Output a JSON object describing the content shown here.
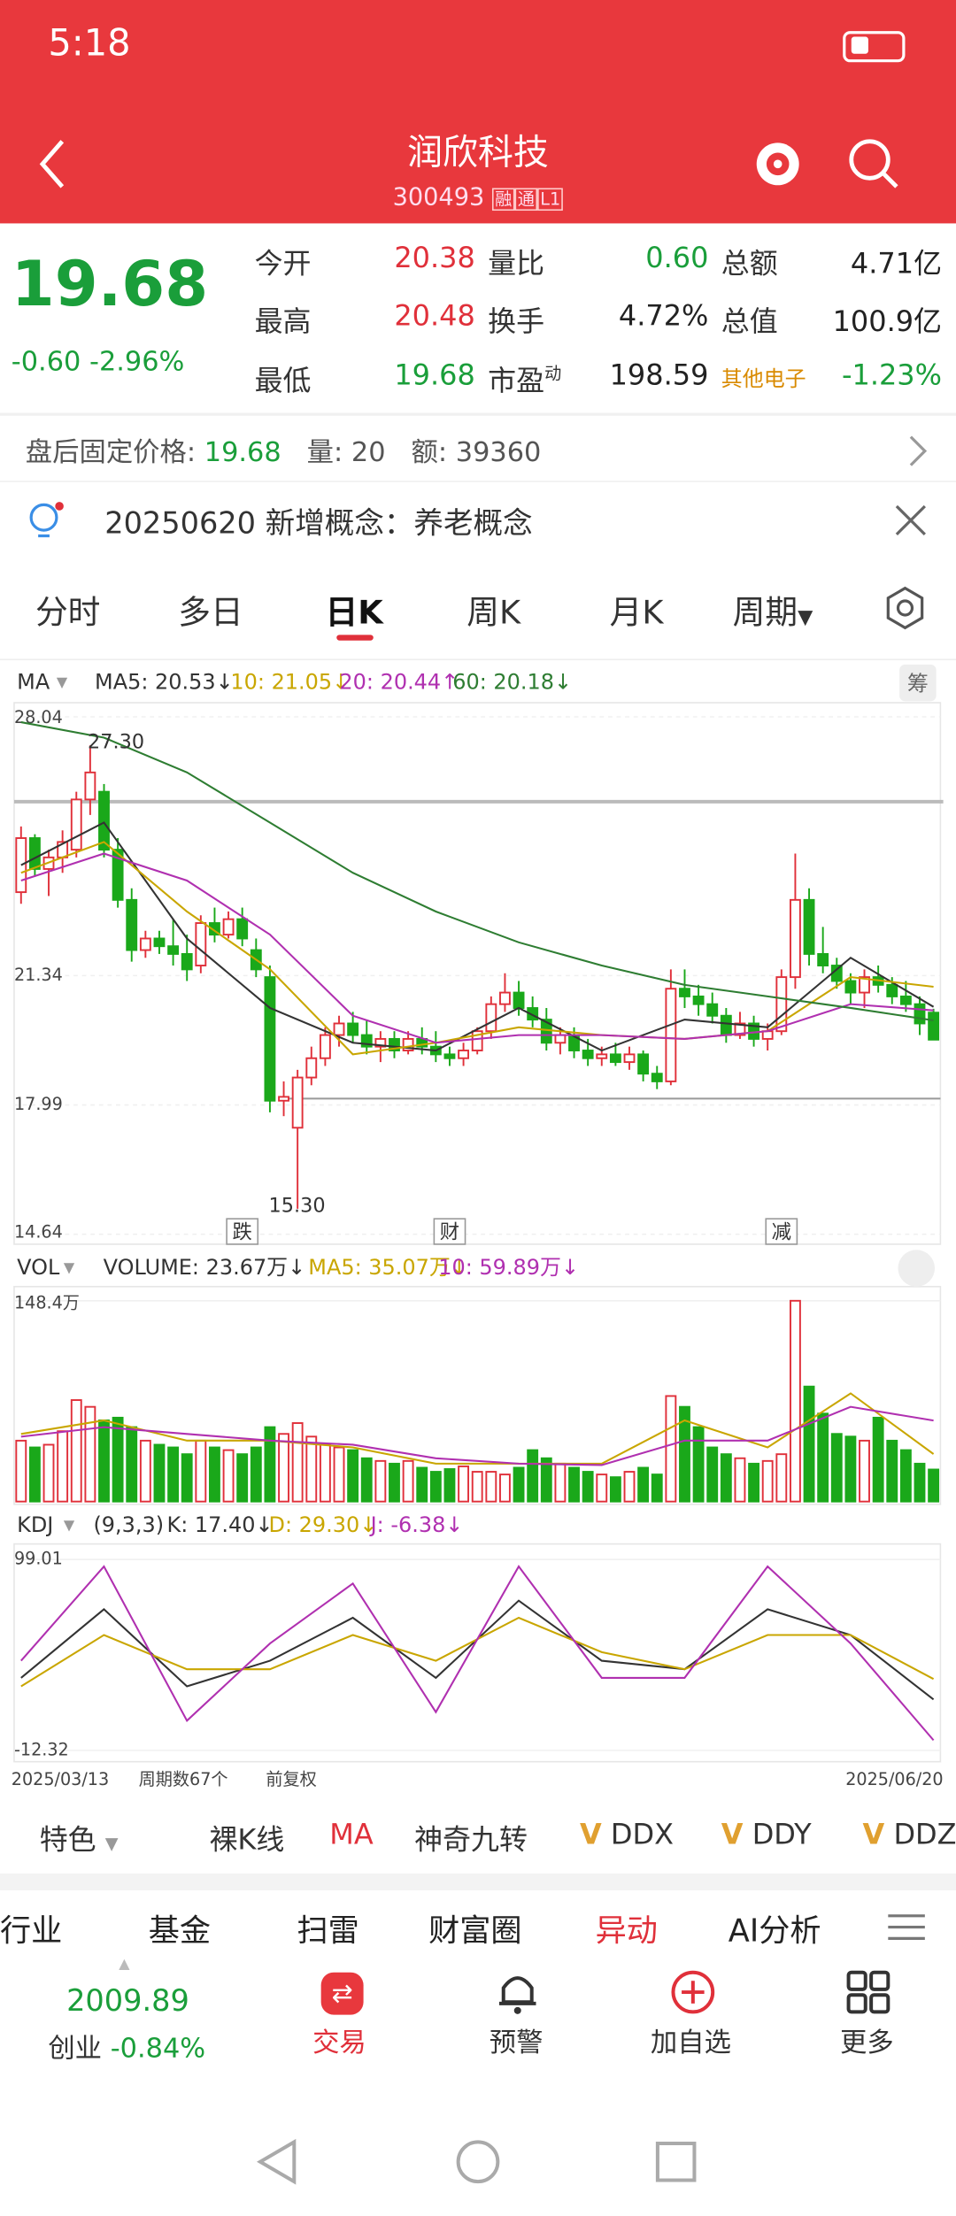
{
  "status_bar": {
    "time": "5:18"
  },
  "header": {
    "title": "润欣科技",
    "code": "300493",
    "badges": [
      "融",
      "通",
      "L1"
    ]
  },
  "quote": {
    "price": "19.68",
    "change": "-0.60",
    "change_pct": "-2.96%",
    "fields": [
      {
        "label": "今开",
        "value": "20.38"
      },
      {
        "label": "量比",
        "value": "0.60"
      },
      {
        "label": "总额",
        "value": "4.71亿"
      },
      {
        "label": "最高",
        "value": "20.48"
      },
      {
        "label": "换手",
        "value": "4.72%"
      },
      {
        "label": "总值",
        "value": "100.9亿"
      },
      {
        "label": "最低",
        "value": "19.68"
      },
      {
        "label": "市盈",
        "sup": "动",
        "value": "198.59"
      },
      {
        "label": "其他电子",
        "value": "-1.23%"
      }
    ]
  },
  "after_hours": {
    "label": "盘后固定价格:",
    "price": "19.68",
    "vol_label": "量:",
    "vol": "20",
    "amt_label": "额:",
    "amt": "39360"
  },
  "notice": {
    "date": "20250620",
    "text": "新增概念：养老概念"
  },
  "tabs": [
    "分时",
    "多日",
    "日K",
    "周K",
    "月K",
    "周期"
  ],
  "kline": {
    "indicator": "MA",
    "chip": "筹",
    "ylim": [
      14.64,
      28.04
    ],
    "yticks": [
      28.04,
      21.34,
      17.99,
      14.64
    ],
    "high_label": "27.30",
    "low_label": "15.30",
    "candles": [
      [
        23.5,
        25.2,
        23.2,
        24.9
      ],
      [
        24.9,
        25.0,
        23.9,
        24.1
      ],
      [
        24.1,
        24.6,
        23.4,
        24.4
      ],
      [
        24.4,
        25.1,
        24.0,
        24.8
      ],
      [
        24.6,
        26.1,
        24.4,
        25.9
      ],
      [
        25.9,
        27.3,
        25.5,
        26.6
      ],
      [
        26.1,
        26.3,
        24.4,
        24.6
      ],
      [
        24.6,
        24.9,
        23.1,
        23.3
      ],
      [
        23.3,
        23.6,
        21.7,
        22.0
      ],
      [
        22.0,
        22.5,
        21.8,
        22.3
      ],
      [
        22.3,
        22.5,
        21.9,
        22.1
      ],
      [
        22.1,
        22.8,
        21.6,
        21.9
      ],
      [
        21.9,
        22.4,
        21.2,
        21.5
      ],
      [
        21.6,
        22.9,
        21.4,
        22.7
      ],
      [
        22.7,
        23.1,
        22.2,
        22.4
      ],
      [
        22.4,
        23.0,
        22.3,
        22.8
      ],
      [
        22.8,
        23.1,
        22.1,
        22.3
      ],
      [
        22.0,
        22.3,
        21.3,
        21.5
      ],
      [
        21.3,
        21.6,
        17.8,
        18.1
      ],
      [
        18.1,
        18.6,
        17.7,
        18.2
      ],
      [
        17.4,
        18.9,
        15.3,
        18.7
      ],
      [
        18.7,
        19.5,
        18.5,
        19.2
      ],
      [
        19.2,
        20.0,
        19.0,
        19.8
      ],
      [
        19.8,
        20.3,
        19.5,
        20.1
      ],
      [
        20.1,
        20.4,
        19.6,
        19.8
      ],
      [
        19.8,
        20.2,
        19.3,
        19.5
      ],
      [
        19.5,
        19.9,
        19.1,
        19.7
      ],
      [
        19.7,
        19.9,
        19.2,
        19.4
      ],
      [
        19.4,
        19.9,
        19.3,
        19.7
      ],
      [
        19.7,
        20.0,
        19.3,
        19.5
      ],
      [
        19.5,
        19.9,
        19.1,
        19.3
      ],
      [
        19.3,
        19.5,
        19.0,
        19.2
      ],
      [
        19.2,
        19.6,
        19.0,
        19.4
      ],
      [
        19.4,
        20.0,
        19.3,
        19.9
      ],
      [
        19.9,
        20.8,
        19.7,
        20.6
      ],
      [
        20.6,
        21.4,
        20.4,
        20.9
      ],
      [
        20.9,
        21.2,
        20.3,
        20.5
      ],
      [
        20.5,
        20.8,
        20.0,
        20.2
      ],
      [
        20.2,
        20.5,
        19.4,
        19.6
      ],
      [
        19.6,
        20.0,
        19.3,
        19.8
      ],
      [
        19.8,
        20.0,
        19.2,
        19.4
      ],
      [
        19.4,
        19.7,
        19.0,
        19.2
      ],
      [
        19.2,
        19.5,
        19.0,
        19.3
      ],
      [
        19.3,
        19.6,
        19.0,
        19.1
      ],
      [
        19.1,
        19.5,
        18.9,
        19.3
      ],
      [
        19.3,
        19.4,
        18.6,
        18.8
      ],
      [
        18.8,
        19.0,
        18.4,
        18.6
      ],
      [
        18.6,
        21.5,
        18.5,
        21.0
      ],
      [
        21.0,
        21.5,
        20.5,
        20.8
      ],
      [
        20.8,
        21.1,
        20.3,
        20.6
      ],
      [
        20.6,
        20.9,
        20.1,
        20.3
      ],
      [
        20.3,
        20.5,
        19.6,
        19.8
      ],
      [
        19.8,
        20.4,
        19.7,
        20.1
      ],
      [
        20.1,
        20.3,
        19.5,
        19.7
      ],
      [
        19.7,
        20.1,
        19.4,
        19.9
      ],
      [
        19.9,
        21.5,
        19.8,
        21.3
      ],
      [
        21.3,
        24.5,
        21.0,
        23.3
      ],
      [
        23.3,
        23.6,
        21.6,
        21.9
      ],
      [
        21.9,
        22.6,
        21.4,
        21.6
      ],
      [
        21.6,
        21.8,
        21.0,
        21.2
      ],
      [
        21.2,
        21.4,
        20.6,
        20.9
      ],
      [
        20.9,
        21.5,
        20.5,
        21.3
      ],
      [
        21.3,
        21.6,
        20.9,
        21.1
      ],
      [
        21.1,
        21.3,
        20.6,
        20.8
      ],
      [
        20.8,
        21.2,
        20.4,
        20.6
      ],
      [
        20.6,
        20.8,
        19.8,
        20.1
      ],
      [
        20.38,
        20.48,
        19.68,
        19.68
      ]
    ],
    "ma": [
      {
        "name": "MA5: 20.53↓",
        "color": "#333333",
        "x": [
          0,
          6,
          12,
          18,
          24,
          30,
          36,
          42,
          48,
          54,
          60,
          66
        ],
        "values": [
          24.2,
          25.3,
          22.3,
          20.5,
          19.6,
          19.4,
          20.5,
          19.4,
          20.2,
          20.0,
          21.8,
          20.53
        ]
      },
      {
        "name": "10: 21.05↓",
        "color": "#c9a600",
        "x": [
          0,
          6,
          12,
          18,
          24,
          30,
          36,
          42,
          48,
          54,
          60,
          66
        ],
        "values": [
          24.0,
          24.8,
          23.0,
          21.5,
          19.3,
          19.6,
          20.0,
          19.8,
          19.7,
          19.9,
          21.3,
          21.05
        ]
      },
      {
        "name": "20: 20.44↑",
        "color": "#b030b0",
        "x": [
          0,
          6,
          12,
          18,
          24,
          30,
          36,
          42,
          48,
          54,
          60,
          66
        ],
        "values": [
          23.8,
          24.5,
          23.8,
          22.4,
          20.3,
          19.6,
          19.8,
          19.8,
          19.7,
          19.9,
          20.6,
          20.44
        ]
      },
      {
        "name": "60: 20.18↓",
        "color": "#2e7d32",
        "x": [
          0,
          6,
          12,
          18,
          24,
          30,
          36,
          42,
          48,
          54,
          60,
          66
        ],
        "values": [
          27.9,
          27.5,
          26.6,
          25.3,
          24.0,
          23.0,
          22.2,
          21.6,
          21.1,
          20.8,
          20.5,
          20.18
        ]
      }
    ],
    "events": [
      {
        "index": 16,
        "label": "跌"
      },
      {
        "index": 31,
        "label": "财"
      },
      {
        "index": 55,
        "label": "减"
      }
    ]
  },
  "volume": {
    "indicator": "VOL",
    "label": "VOLUME: 23.67万↓",
    "ylim": [
      0,
      148.4
    ],
    "yticks": [
      {
        "value": 148.4,
        "label": "148.4万"
      }
    ],
    "values": [
      45,
      40,
      42,
      52,
      75,
      70,
      60,
      62,
      55,
      45,
      42,
      40,
      35,
      45,
      40,
      38,
      35,
      40,
      55,
      50,
      58,
      48,
      42,
      40,
      38,
      32,
      30,
      28,
      30,
      25,
      22,
      24,
      26,
      22,
      22,
      20,
      25,
      38,
      32,
      28,
      25,
      22,
      20,
      18,
      22,
      25,
      20,
      78,
      70,
      55,
      40,
      35,
      32,
      28,
      30,
      35,
      148.4,
      85,
      65,
      50,
      48,
      45,
      62,
      45,
      38,
      28,
      23.67
    ],
    "ma": [
      {
        "name": "MA5: 35.07万↓",
        "color": "#c9a600",
        "x": [
          0,
          6,
          12,
          18,
          24,
          30,
          36,
          42,
          48,
          54,
          60,
          66
        ],
        "values": [
          50,
          60,
          45,
          45,
          40,
          28,
          28,
          28,
          60,
          40,
          80,
          35.07
        ]
      },
      {
        "name": "10: 59.89万↓",
        "color": "#b030b0",
        "x": [
          0,
          6,
          12,
          18,
          24,
          30,
          36,
          42,
          48,
          54,
          60,
          66
        ],
        "values": [
          48,
          55,
          50,
          45,
          42,
          32,
          28,
          27,
          45,
          45,
          70,
          59.89
        ]
      }
    ]
  },
  "kdj": {
    "indicator": "KDJ",
    "params": "(9,3,3)",
    "ylim": [
      -12.32,
      99.01
    ],
    "yticks": [
      99.01,
      -12.32
    ],
    "series": [
      {
        "name": "K: 17.40↓",
        "color": "#333333",
        "x": [
          0,
          6,
          12,
          18,
          24,
          30,
          36,
          42,
          48,
          54,
          60,
          66
        ],
        "values": [
          30,
          70,
          25,
          40,
          65,
          30,
          75,
          40,
          35,
          70,
          55,
          17.4
        ]
      },
      {
        "name": "D: 29.30↓",
        "color": "#c9a600",
        "x": [
          0,
          6,
          12,
          18,
          24,
          30,
          36,
          42,
          48,
          54,
          60,
          66
        ],
        "values": [
          25,
          55,
          35,
          35,
          55,
          40,
          65,
          45,
          35,
          55,
          55,
          29.3
        ]
      },
      {
        "name": "J: -6.38↓",
        "color": "#b030b0",
        "x": [
          0,
          6,
          12,
          18,
          24,
          30,
          36,
          42,
          48,
          54,
          60,
          66
        ],
        "values": [
          40,
          95,
          5,
          50,
          85,
          10,
          95,
          30,
          30,
          95,
          50,
          -6.38
        ]
      }
    ]
  },
  "chart_footer": {
    "start": "2025/03/13",
    "count": "周期数67个",
    "adjust": "前复权",
    "end": "2025/06/20"
  },
  "indicator_bar": [
    "特色",
    "裸K线",
    "MA",
    "神奇九转",
    "DDX",
    "DDY",
    "DDZ"
  ],
  "bottom_tabs": [
    "行业",
    "基金",
    "扫雷",
    "财富圈",
    "异动",
    "AI分析"
  ],
  "bottom_nav": {
    "index_value": "2009.89",
    "index_name": "创业",
    "index_change": "-0.84%",
    "items": [
      "交易",
      "预警",
      "加自选",
      "更多"
    ]
  }
}
